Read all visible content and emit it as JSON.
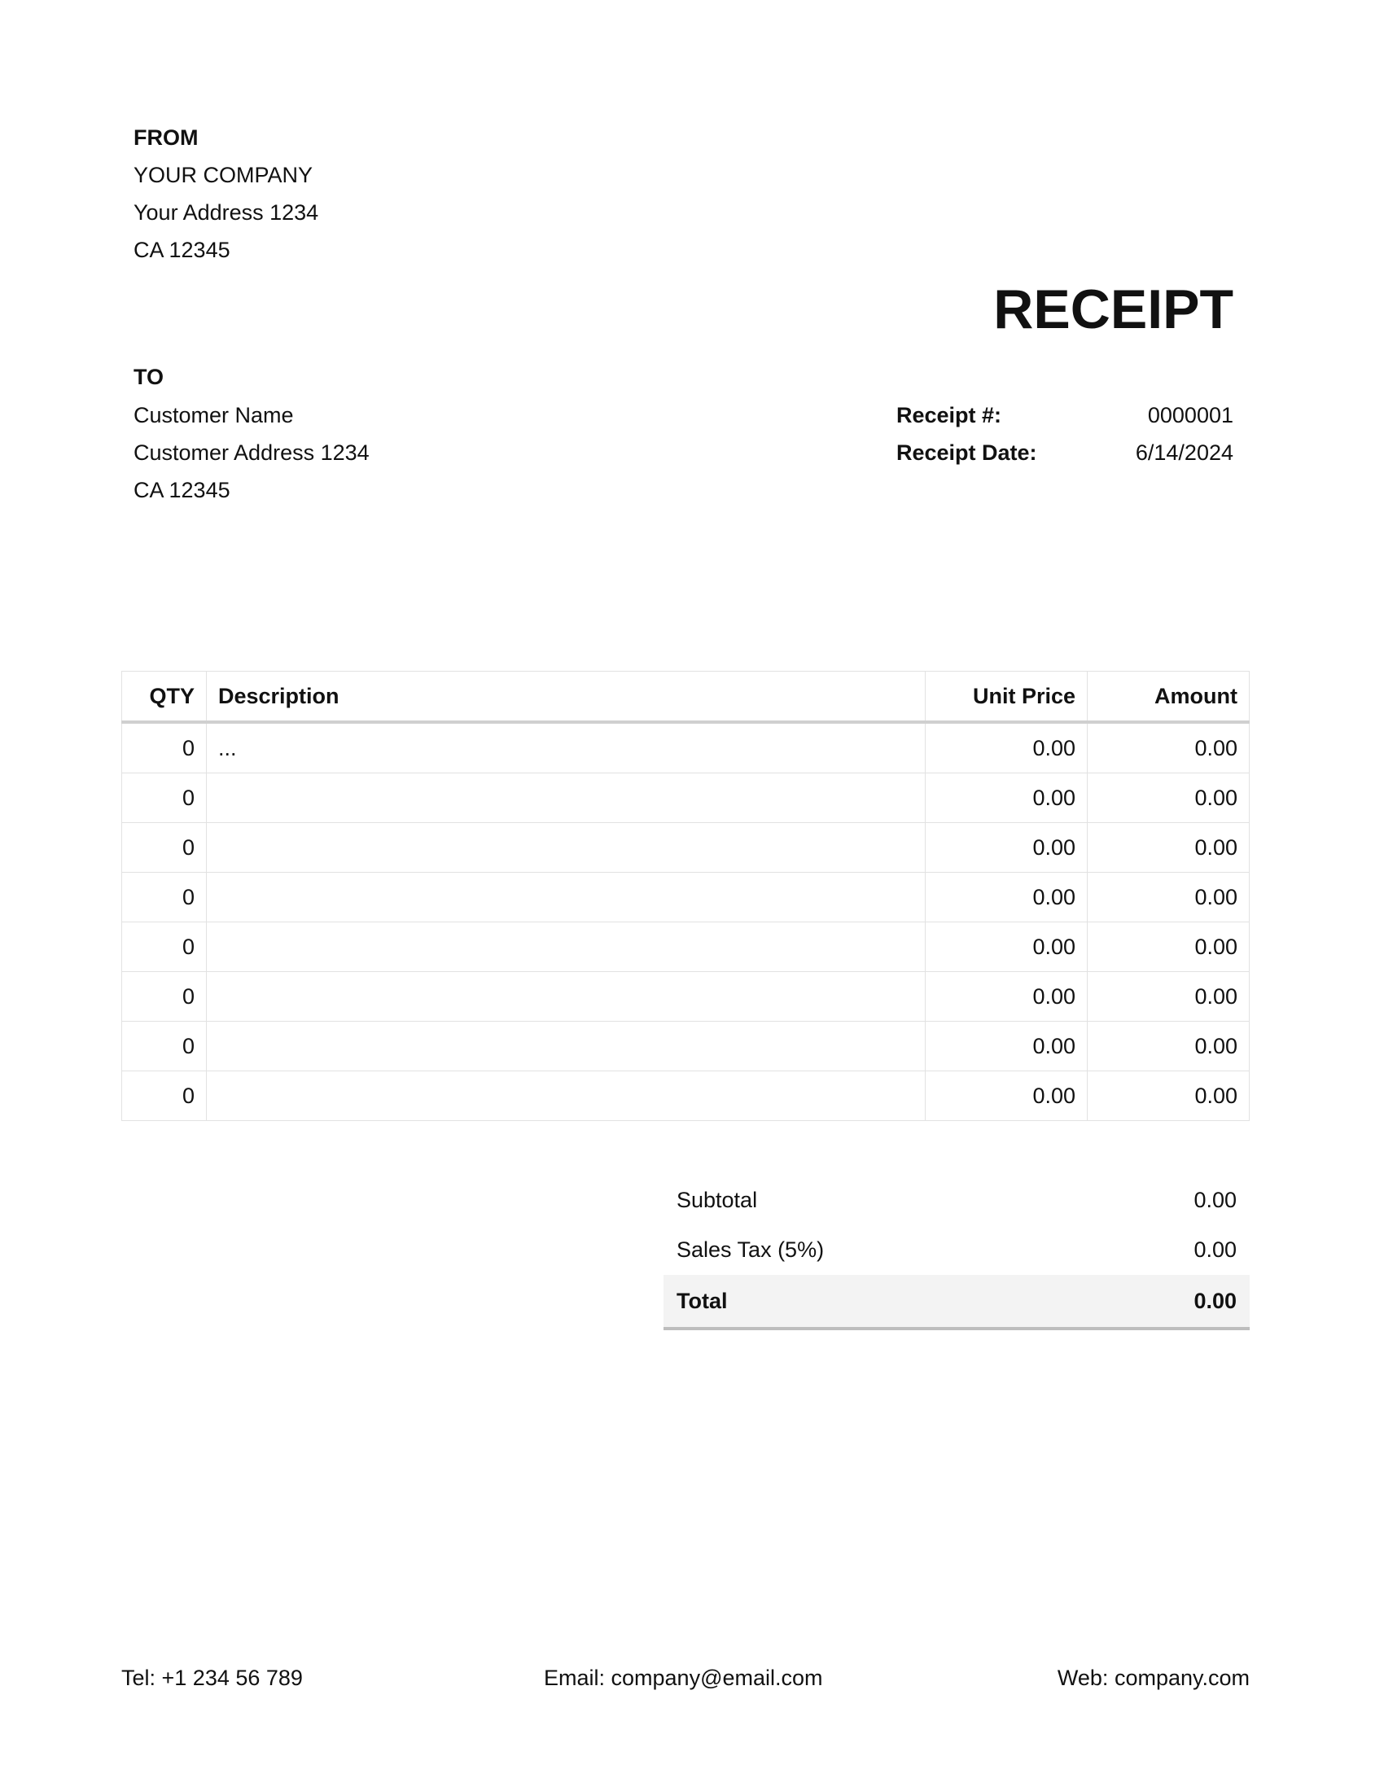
{
  "from": {
    "heading": "FROM",
    "lines": [
      "YOUR COMPANY",
      "Your Address 1234",
      "CA 12345"
    ]
  },
  "to": {
    "heading": "TO",
    "lines": [
      "Customer Name",
      "Customer Address 1234",
      "CA 12345"
    ]
  },
  "title": "RECEIPT",
  "meta": {
    "number_label": "Receipt #:",
    "number": "0000001",
    "date_label": "Receipt Date:",
    "date": "6/14/2024"
  },
  "table": {
    "headers": [
      "QTY",
      "Description",
      "Unit Price",
      "Amount"
    ],
    "rows": [
      [
        "0",
        "...",
        "0.00",
        "0.00"
      ],
      [
        "0",
        "",
        "0.00",
        "0.00"
      ],
      [
        "0",
        "",
        "0.00",
        "0.00"
      ],
      [
        "0",
        "",
        "0.00",
        "0.00"
      ],
      [
        "0",
        "",
        "0.00",
        "0.00"
      ],
      [
        "0",
        "",
        "0.00",
        "0.00"
      ],
      [
        "0",
        "",
        "0.00",
        "0.00"
      ],
      [
        "0",
        "",
        "0.00",
        "0.00"
      ]
    ]
  },
  "totals": {
    "subtotal_label": "Subtotal",
    "subtotal": "0.00",
    "tax_label": "Sales Tax (5%)",
    "tax": "0.00",
    "total_label": "Total",
    "total": "0.00"
  },
  "footer": {
    "tel": "Tel: +1 234 56 789",
    "email": "Email: company@email.com",
    "web": "Web: company.com"
  }
}
